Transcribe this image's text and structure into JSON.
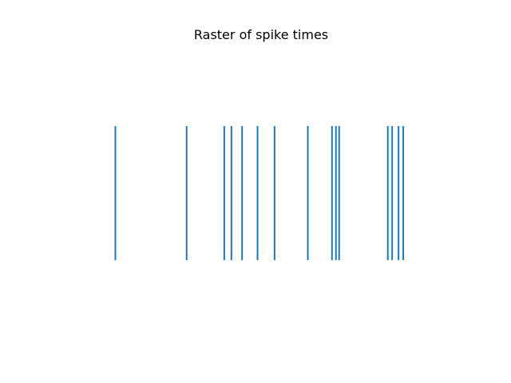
{
  "chart_data": {
    "type": "eventplot",
    "title": "Raster of spike times",
    "xlabel": "",
    "ylabel": "",
    "axes_visible": false,
    "grid": false,
    "color": "#1f77b4",
    "series": [
      {
        "events": [
          0.13,
          0.31,
          0.405,
          0.423,
          0.45,
          0.489,
          0.532,
          0.616,
          0.677,
          0.687,
          0.695,
          0.818,
          0.829,
          0.845,
          0.857
        ]
      }
    ]
  }
}
